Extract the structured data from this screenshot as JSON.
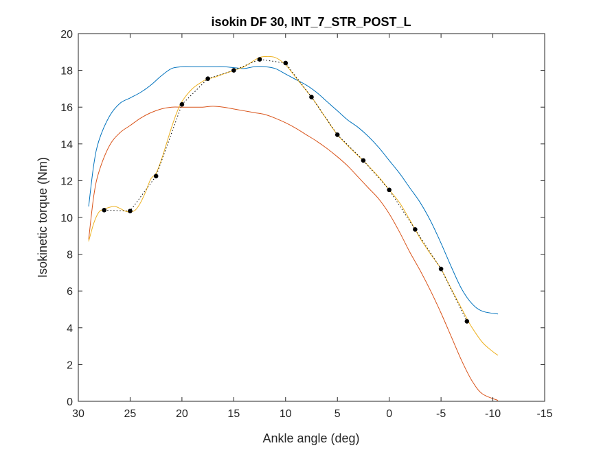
{
  "chart_data": {
    "type": "line",
    "title": "isokin DF 30, INT_7_STR_POST_L",
    "xlabel": "Ankle angle (deg)",
    "ylabel": "Isokinetic torque (Nm)",
    "xlim": [
      30,
      -15
    ],
    "ylim": [
      0,
      20
    ],
    "x_reversed": true,
    "grid": false,
    "legend": "none",
    "xticks": [
      30,
      25,
      20,
      15,
      10,
      5,
      0,
      -5,
      -10,
      -15
    ],
    "xtick_labels": [
      "30",
      "25",
      "20",
      "15",
      "10",
      "5",
      "0",
      "-5",
      "-10",
      "-15"
    ],
    "yticks": [
      0,
      2,
      4,
      6,
      8,
      10,
      12,
      14,
      16,
      18,
      20
    ],
    "ytick_labels": [
      "0",
      "2",
      "4",
      "6",
      "8",
      "10",
      "12",
      "14",
      "16",
      "18",
      "20"
    ],
    "series": [
      {
        "style": "solid",
        "color": "#0072BD",
        "x": [
          29,
          28.5,
          28,
          27,
          26,
          25,
          24,
          23,
          22,
          21,
          20,
          19,
          18,
          17,
          16,
          15,
          14,
          13,
          12,
          11,
          10,
          9,
          8,
          7,
          6,
          5,
          4,
          3,
          2,
          1,
          0,
          -1,
          -2,
          -3,
          -4,
          -5,
          -6,
          -7,
          -8,
          -9,
          -10.5
        ],
        "y": [
          10.6,
          12.9,
          14.2,
          15.5,
          16.2,
          16.5,
          16.8,
          17.2,
          17.7,
          18.1,
          18.2,
          18.2,
          18.2,
          18.2,
          18.2,
          18.15,
          18.1,
          18.2,
          18.2,
          18.1,
          17.8,
          17.5,
          17.2,
          16.8,
          16.3,
          15.8,
          15.3,
          14.9,
          14.4,
          13.8,
          13.1,
          12.4,
          11.6,
          10.8,
          9.8,
          8.6,
          7.3,
          6.1,
          5.3,
          4.9,
          4.75
        ]
      },
      {
        "style": "solid",
        "color": "#D95319",
        "x": [
          29,
          28.5,
          28,
          27,
          26,
          25,
          24,
          23,
          22,
          21,
          20,
          19,
          18,
          17,
          16,
          15,
          14,
          13,
          12,
          11,
          10,
          9,
          8,
          7,
          6,
          5,
          4,
          3,
          2,
          1,
          0,
          -1,
          -2,
          -3,
          -4,
          -5,
          -6,
          -7,
          -8,
          -9,
          -10.5
        ],
        "y": [
          8.8,
          11.2,
          12.5,
          13.9,
          14.6,
          15.0,
          15.4,
          15.7,
          15.9,
          16.0,
          16.0,
          16.0,
          16.0,
          16.05,
          16.0,
          15.9,
          15.8,
          15.7,
          15.6,
          15.4,
          15.15,
          14.85,
          14.5,
          14.15,
          13.75,
          13.3,
          12.8,
          12.2,
          11.6,
          11.0,
          10.2,
          9.2,
          8.1,
          7.1,
          6.0,
          4.8,
          3.5,
          2.2,
          1.1,
          0.4,
          0.05
        ]
      },
      {
        "style": "solid",
        "color": "#EDB120",
        "x": [
          29,
          28.5,
          28,
          27.5,
          27,
          26.5,
          26,
          25.5,
          25,
          24.5,
          24,
          23.5,
          23,
          22.5,
          22,
          21.5,
          21,
          20.5,
          20,
          19,
          18,
          17.5,
          17,
          16,
          15,
          14,
          13,
          12.5,
          12,
          11,
          10,
          9,
          8,
          7.5,
          7,
          6,
          5,
          4,
          3,
          2.5,
          2,
          1,
          0,
          -1,
          -2,
          -2.5,
          -3,
          -4,
          -5,
          -6,
          -7.5,
          -8,
          -9,
          -10,
          -10.5
        ],
        "y": [
          8.7,
          9.7,
          10.3,
          10.45,
          10.55,
          10.6,
          10.5,
          10.35,
          10.3,
          10.4,
          10.8,
          11.4,
          12.1,
          12.4,
          13.1,
          14.0,
          14.9,
          15.7,
          16.3,
          17.0,
          17.4,
          17.55,
          17.6,
          17.8,
          18.0,
          18.2,
          18.55,
          18.7,
          18.75,
          18.7,
          18.3,
          17.6,
          16.9,
          16.55,
          16.15,
          15.3,
          14.5,
          13.9,
          13.35,
          13.1,
          12.8,
          12.2,
          11.5,
          10.8,
          9.85,
          9.35,
          8.85,
          8.0,
          7.2,
          6.1,
          4.5,
          4.0,
          3.2,
          2.7,
          2.5
        ]
      },
      {
        "style": "dotted-markers",
        "color": "#000000",
        "x": [
          27.5,
          25,
          22.5,
          20,
          17.5,
          15,
          12.5,
          10,
          7.5,
          5,
          2.5,
          0,
          -2.5,
          -5,
          -7.5
        ],
        "y": [
          10.4,
          10.35,
          12.25,
          16.15,
          17.55,
          18.0,
          18.6,
          18.4,
          16.55,
          14.5,
          13.1,
          11.5,
          9.35,
          7.2,
          4.35
        ]
      }
    ]
  }
}
